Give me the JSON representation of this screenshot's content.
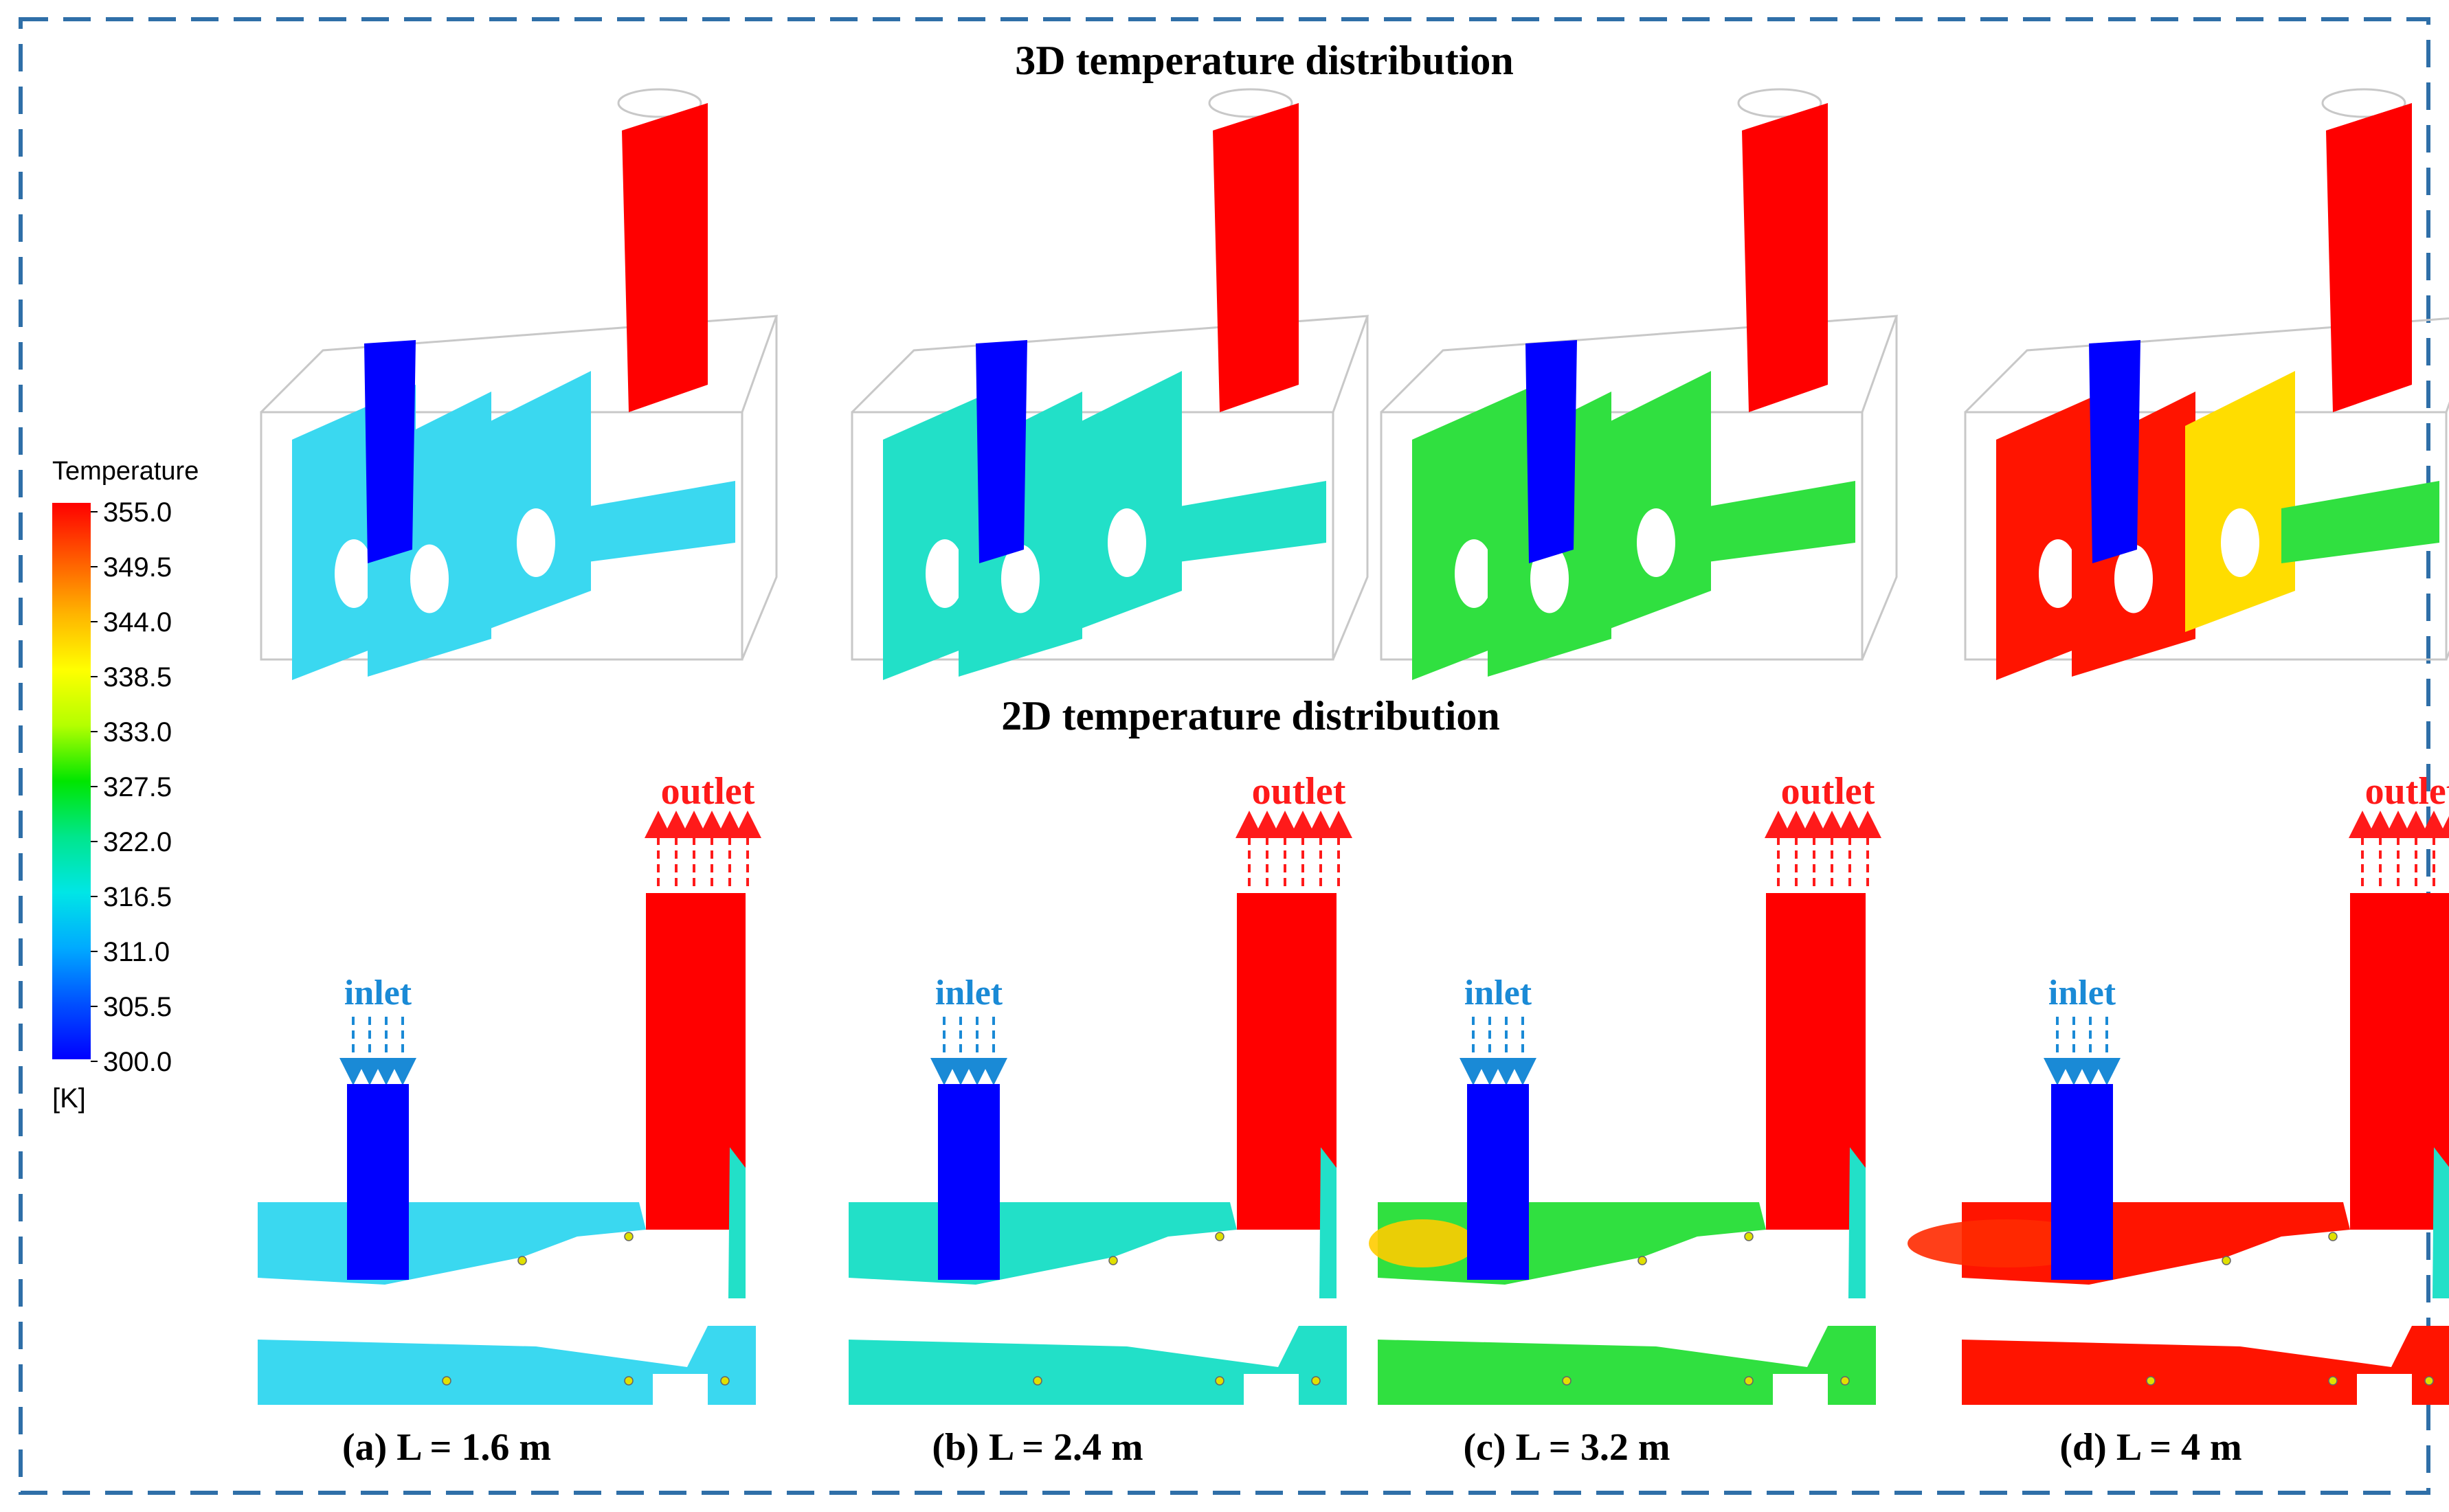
{
  "figure": {
    "title_3d": "3D temperature distribution",
    "title_2d": "2D temperature distribution",
    "inlet_label": "inlet",
    "outlet_label": "outlet"
  },
  "legend": {
    "title": "Temperature",
    "unit": "[K]",
    "ticks": [
      "355.0",
      "349.5",
      "344.0",
      "338.5",
      "333.0",
      "327.5",
      "322.0",
      "316.5",
      "311.0",
      "305.5",
      "300.0"
    ],
    "min": 300.0,
    "max": 355.0,
    "colors": [
      "#ff0000",
      "#ff5a00",
      "#ffb400",
      "#ffff00",
      "#b4ff00",
      "#00e600",
      "#00e68c",
      "#00e6e6",
      "#00aaff",
      "#0050ff",
      "#0000ff"
    ]
  },
  "panels": [
    {
      "label": "(a)",
      "caption": "L = 1.6 m",
      "chamber_color": "#3ad8f0",
      "hot_fraction": 0.0
    },
    {
      "label": "(b)",
      "caption": "L = 2.4 m",
      "chamber_color": "#22e0c8",
      "hot_fraction": 0.05
    },
    {
      "label": "(c)",
      "caption": "L = 3.2 m",
      "chamber_color": "#30e040",
      "hot_fraction": 0.15
    },
    {
      "label": "(d)",
      "caption": "L = 4 m",
      "chamber_color": "#ff1400",
      "hot_fraction": 0.7
    }
  ],
  "colors": {
    "border": "#2f6fa8",
    "hot": "#ff0000",
    "cold": "#0000ff",
    "inlet_arrow": "#1a8ad6",
    "outlet_arrow": "#ff1a1a"
  }
}
